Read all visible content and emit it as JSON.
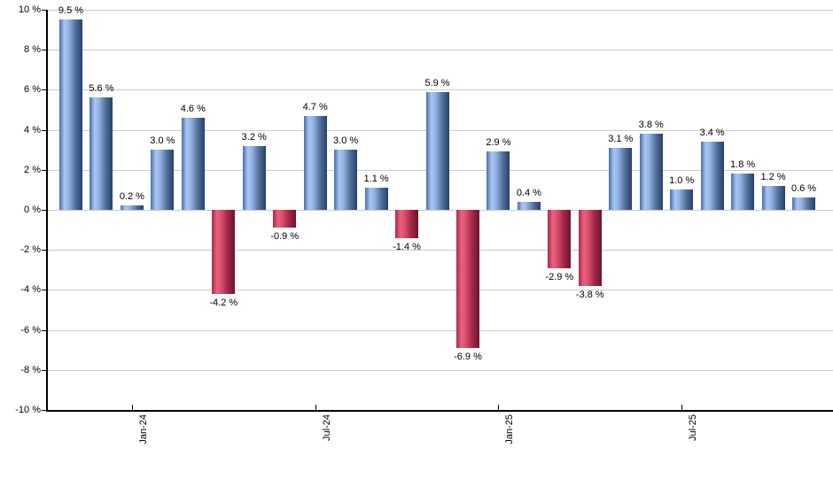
{
  "chart_data": {
    "type": "bar",
    "title": "",
    "xlabel": "",
    "ylabel": "",
    "unit": "%",
    "ylim": [
      -10,
      10
    ],
    "y_tick_step": 2,
    "grid": true,
    "y_tick_labels": [
      "10 %",
      "8 %",
      "6 %",
      "4 %",
      "2 %",
      "0 %",
      "-2 %",
      "-4 %",
      "-6 %",
      "-8 %",
      "-10 %"
    ],
    "y_tick_values": [
      10,
      8,
      6,
      4,
      2,
      0,
      -2,
      -4,
      -6,
      -8,
      -10
    ],
    "values": [
      9.5,
      5.6,
      0.2,
      3.0,
      4.6,
      -4.2,
      3.2,
      -0.9,
      4.7,
      3.0,
      1.1,
      -1.4,
      5.9,
      -6.9,
      2.9,
      0.4,
      -2.9,
      -3.8,
      3.1,
      3.8,
      1.0,
      3.4,
      1.8,
      1.2,
      0.6
    ],
    "value_labels": [
      "9.5 %",
      "5.6 %",
      "0.2 %",
      "3.0 %",
      "4.6 %",
      "-4.2 %",
      "3.2 %",
      "-0.9 %",
      "4.7 %",
      "3.0 %",
      "1.1 %",
      "-1.4 %",
      "5.9 %",
      "-6.9 %",
      "2.9 %",
      "0.4 %",
      "-2.9 %",
      "-3.8 %",
      "3.1 %",
      "3.8 %",
      "1.0 %",
      "3.4 %",
      "1.8 %",
      "1.2 %",
      "0.6 %"
    ],
    "x_ticks": [
      {
        "index": 2,
        "label": "Jan-24"
      },
      {
        "index": 8,
        "label": "Jul-24"
      },
      {
        "index": 14,
        "label": "Jan-25"
      },
      {
        "index": 20,
        "label": "Jul-25"
      }
    ],
    "legend": null,
    "colors": {
      "background": "#ffffff",
      "gridline": "#cccccc",
      "axis": "#000000",
      "text": "#000000",
      "positive_bar_stops": [
        [
          "0%",
          "#4a6ea7"
        ],
        [
          "22%",
          "#a9c6f2"
        ],
        [
          "40%",
          "#93b3e4"
        ],
        [
          "70%",
          "#537098"
        ],
        [
          "100%",
          "#24406d"
        ]
      ],
      "negative_bar_stops": [
        [
          "0%",
          "#a52a4b"
        ],
        [
          "22%",
          "#e8627e"
        ],
        [
          "40%",
          "#dd4f6d"
        ],
        [
          "70%",
          "#a02747"
        ],
        [
          "100%",
          "#6f122d"
        ]
      ]
    }
  }
}
